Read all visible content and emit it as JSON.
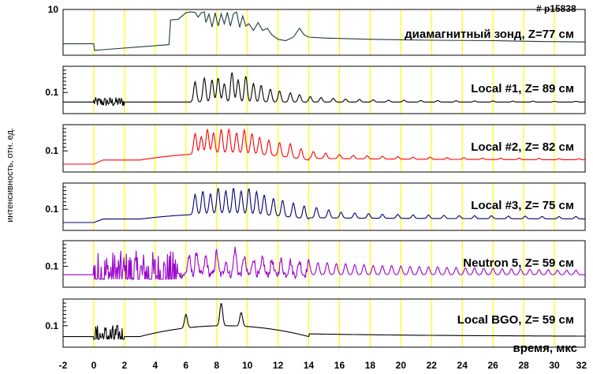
{
  "shot_number": "# p15838",
  "ylabel": "интенсивность, отн. ед.",
  "xlabel": "время, мкс",
  "colors": {
    "grid": "#ffff00",
    "frame": "#000000"
  },
  "chart_data": {
    "type": "line",
    "x_ticks": [
      "-2",
      "0",
      "2",
      "4",
      "6",
      "8",
      "10",
      "12",
      "14",
      "16",
      "18",
      "20",
      "22",
      "24",
      "26",
      "28",
      "30",
      "32"
    ],
    "xlim": [
      -2,
      32
    ],
    "panels": [
      {
        "id": "diamag",
        "label": "диамагнитный зонд, Z=77 см",
        "color": "#1f3b3b",
        "ytick_label": "10",
        "points": [
          [
            -2,
            2.6
          ],
          [
            0,
            2.6
          ],
          [
            0.05,
            1.1
          ],
          [
            4.9,
            2.4
          ],
          [
            5.0,
            8.0
          ],
          [
            5.5,
            8.1
          ],
          [
            6.0,
            9.6
          ],
          [
            6.3,
            9.8
          ],
          [
            6.6,
            9.7
          ],
          [
            6.8,
            8.6
          ],
          [
            7.0,
            9.6
          ],
          [
            7.2,
            9.8
          ],
          [
            7.3,
            7.4
          ],
          [
            7.5,
            9.3
          ],
          [
            7.7,
            6.4
          ],
          [
            7.9,
            9.6
          ],
          [
            8.1,
            6.6
          ],
          [
            8.3,
            9.4
          ],
          [
            8.5,
            7.1
          ],
          [
            8.7,
            9.7
          ],
          [
            8.9,
            6.6
          ],
          [
            9.1,
            9.4
          ],
          [
            9.3,
            9.8
          ],
          [
            9.5,
            6.3
          ],
          [
            9.7,
            8.9
          ],
          [
            9.9,
            6.6
          ],
          [
            10.1,
            7.1
          ],
          [
            10.4,
            5.6
          ],
          [
            10.7,
            7.4
          ],
          [
            11.0,
            5.6
          ],
          [
            11.3,
            6.1
          ],
          [
            11.6,
            4.6
          ],
          [
            12.0,
            3.6
          ],
          [
            12.5,
            3.3
          ],
          [
            13.0,
            4.1
          ],
          [
            13.4,
            6.1
          ],
          [
            13.7,
            4.6
          ],
          [
            14.0,
            4.1
          ],
          [
            15.0,
            3.9
          ],
          [
            18,
            3.6
          ],
          [
            22,
            3.4
          ],
          [
            26,
            3.3
          ],
          [
            29,
            3.1
          ],
          [
            32,
            3.0
          ]
        ]
      },
      {
        "id": "local1",
        "label": "Local #1,  Z= 89 см",
        "color": "#000000",
        "ytick_label": "0.1",
        "baseline": 1.0,
        "noise_start": 0.0,
        "noise_end": 2.0,
        "peaks": [
          [
            6.6,
            5.5
          ],
          [
            7.2,
            6.5
          ],
          [
            7.7,
            6.0
          ],
          [
            8.1,
            6.5
          ],
          [
            8.5,
            5.0
          ],
          [
            9.0,
            8.0
          ],
          [
            9.4,
            6.0
          ],
          [
            9.9,
            7.0
          ],
          [
            10.4,
            5.0
          ],
          [
            10.9,
            4.5
          ],
          [
            11.5,
            3.5
          ],
          [
            12.1,
            3.0
          ],
          [
            12.8,
            2.5
          ],
          [
            13.4,
            2.0
          ],
          [
            14.1,
            1.5
          ],
          [
            14.8,
            1.2
          ],
          [
            15.6,
            1.0
          ],
          [
            16.4,
            0.8
          ],
          [
            17.3,
            0.7
          ],
          [
            18.2,
            0.6
          ],
          [
            19.2,
            0.5
          ],
          [
            20.2,
            0.5
          ],
          [
            21.3,
            0.4
          ],
          [
            22.4,
            0.4
          ],
          [
            23.6,
            0.35
          ],
          [
            24.8,
            0.3
          ],
          [
            26.0,
            0.3
          ],
          [
            27.3,
            0.25
          ],
          [
            28.6,
            0.25
          ],
          [
            30.0,
            0.2
          ],
          [
            31.4,
            0.2
          ]
        ]
      },
      {
        "id": "local2",
        "label": "Local #2,  Z= 82 см",
        "color": "#ff0000",
        "ytick_label": "0.1",
        "baseline": 0.6,
        "rise_start": 0.0,
        "rise_end": 0.6,
        "hump": 1.0,
        "peaks": [
          [
            6.6,
            3.0
          ],
          [
            7.0,
            2.5
          ],
          [
            7.4,
            3.5
          ],
          [
            7.8,
            3.0
          ],
          [
            8.3,
            3.5
          ],
          [
            8.8,
            3.5
          ],
          [
            9.3,
            3.0
          ],
          [
            9.8,
            3.5
          ],
          [
            10.3,
            3.0
          ],
          [
            10.8,
            2.5
          ],
          [
            11.4,
            2.2
          ],
          [
            12.1,
            2.0
          ],
          [
            12.8,
            2.0
          ],
          [
            13.5,
            1.5
          ],
          [
            14.3,
            1.0
          ],
          [
            15.1,
            0.8
          ],
          [
            16.0,
            0.6
          ],
          [
            16.9,
            0.5
          ],
          [
            17.8,
            0.45
          ],
          [
            18.8,
            0.4
          ],
          [
            19.8,
            0.35
          ],
          [
            20.8,
            0.3
          ],
          [
            21.9,
            0.3
          ],
          [
            23.0,
            0.25
          ],
          [
            24.1,
            0.25
          ],
          [
            25.3,
            0.2
          ],
          [
            26.5,
            0.2
          ],
          [
            27.7,
            0.2
          ],
          [
            29.0,
            0.2
          ],
          [
            30.3,
            0.15
          ],
          [
            31.6,
            0.15
          ]
        ]
      },
      {
        "id": "local3",
        "label": "Local #3,  Z= 75 см",
        "color": "#000070",
        "ytick_label": "0.1",
        "baseline": 0.6,
        "rise_start": 0.0,
        "rise_end": 0.6,
        "hump": 0.9,
        "peaks": [
          [
            6.6,
            3.5
          ],
          [
            7.1,
            4.0
          ],
          [
            7.6,
            3.5
          ],
          [
            8.1,
            4.5
          ],
          [
            8.6,
            4.0
          ],
          [
            9.1,
            4.5
          ],
          [
            9.6,
            4.0
          ],
          [
            10.1,
            4.5
          ],
          [
            10.6,
            4.0
          ],
          [
            11.1,
            3.5
          ],
          [
            11.7,
            3.0
          ],
          [
            12.3,
            2.8
          ],
          [
            13.0,
            2.5
          ],
          [
            13.7,
            2.2
          ],
          [
            14.5,
            1.8
          ],
          [
            15.3,
            1.4
          ],
          [
            16.1,
            1.0
          ],
          [
            17.0,
            0.9
          ],
          [
            17.9,
            0.8
          ],
          [
            18.8,
            0.7
          ],
          [
            19.8,
            0.7
          ],
          [
            20.8,
            0.6
          ],
          [
            21.8,
            0.6
          ],
          [
            22.8,
            0.55
          ],
          [
            23.8,
            0.5
          ],
          [
            24.8,
            0.5
          ],
          [
            25.9,
            0.5
          ],
          [
            27.0,
            0.45
          ],
          [
            28.1,
            0.45
          ],
          [
            29.2,
            0.4
          ],
          [
            30.3,
            0.4
          ],
          [
            31.4,
            0.4
          ]
        ]
      },
      {
        "id": "neutron5",
        "label": "Neutron 5,  Z= 59 см",
        "color": "#9900cc",
        "ytick_label": "0.1",
        "baseline": 0.5,
        "noise_start": 0.0,
        "noise_end": 5.5,
        "peaks": [
          [
            6.2,
            2.0
          ],
          [
            6.7,
            2.5
          ],
          [
            7.3,
            2.0
          ],
          [
            8.0,
            2.5
          ],
          [
            8.6,
            1.5
          ],
          [
            9.2,
            2.8
          ],
          [
            9.8,
            2.0
          ],
          [
            10.4,
            1.8
          ],
          [
            11.0,
            1.8
          ],
          [
            11.6,
            1.6
          ],
          [
            12.2,
            1.6
          ],
          [
            12.8,
            1.5
          ],
          [
            13.4,
            1.5
          ],
          [
            14.0,
            1.4
          ],
          [
            14.6,
            1.3
          ],
          [
            15.2,
            1.3
          ],
          [
            15.8,
            1.2
          ],
          [
            16.4,
            1.2
          ],
          [
            17.0,
            1.1
          ],
          [
            17.6,
            1.1
          ],
          [
            18.2,
            1.0
          ],
          [
            18.8,
            1.0
          ],
          [
            19.4,
            1.0
          ],
          [
            20.0,
            0.95
          ],
          [
            20.6,
            0.9
          ],
          [
            21.2,
            0.9
          ],
          [
            21.8,
            0.85
          ],
          [
            22.4,
            0.85
          ],
          [
            23.0,
            0.8
          ],
          [
            23.6,
            0.8
          ],
          [
            24.2,
            0.75
          ],
          [
            24.8,
            0.75
          ],
          [
            25.4,
            0.7
          ],
          [
            26.0,
            0.7
          ],
          [
            26.6,
            0.65
          ],
          [
            27.2,
            0.65
          ],
          [
            27.8,
            0.6
          ],
          [
            28.4,
            0.6
          ],
          [
            29.0,
            0.55
          ],
          [
            29.6,
            0.55
          ],
          [
            30.2,
            0.5
          ],
          [
            30.8,
            0.5
          ],
          [
            31.4,
            0.5
          ]
        ]
      },
      {
        "id": "bgo",
        "label": "Local BGO,  Z= 59 см",
        "color": "#000000",
        "ytick_label": "0.1",
        "baseline": 0.3,
        "noise_start": 0.0,
        "noise_end": 2.0,
        "hump": 1.2,
        "peaks": [
          [
            6.0,
            1.5
          ],
          [
            8.3,
            2.5
          ],
          [
            9.6,
            1.5
          ]
        ]
      }
    ]
  }
}
